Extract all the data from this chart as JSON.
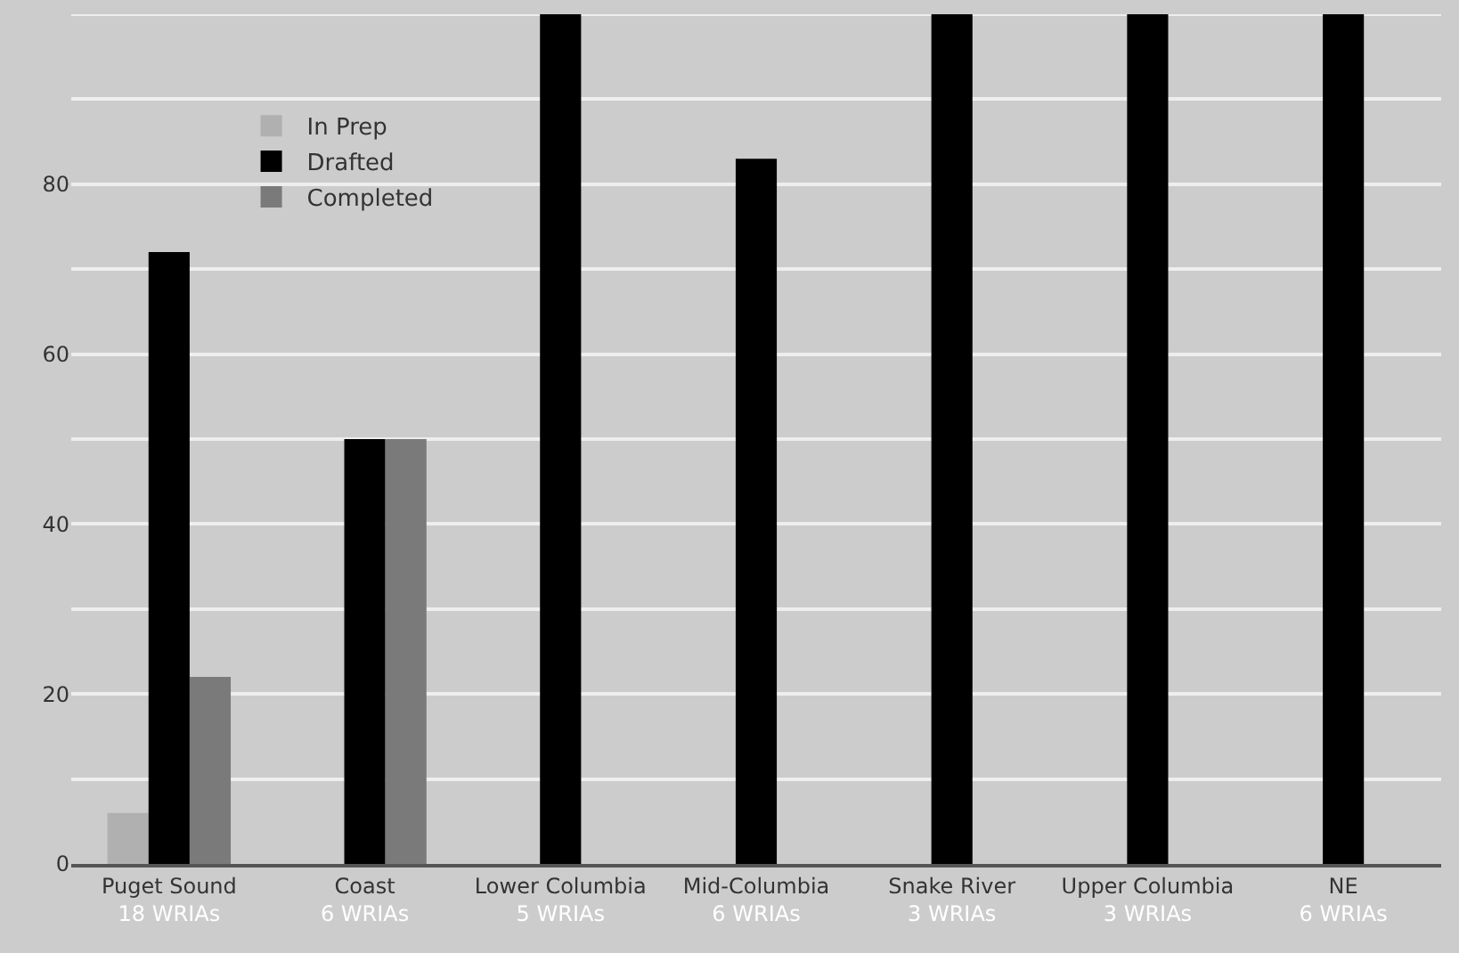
{
  "chart_data": {
    "type": "bar",
    "categories": [
      "Puget Sound\n18 WRIAs",
      "Coast\n6 WRIAs",
      "Lower Columbia\n5 WRIAs",
      "Mid-Columbia\n6 WRIAs",
      "Snake River\n3 WRIAs",
      "Upper Columbia\n3 WRIAs",
      "NE\n6 WRIAs"
    ],
    "series": [
      {
        "name": "In Prep",
        "color": "#b0b0b0",
        "values": [
          6,
          null,
          null,
          null,
          null,
          null,
          null
        ]
      },
      {
        "name": "Drafted",
        "color": "#000000",
        "values": [
          72,
          50,
          100,
          83,
          100,
          100,
          100
        ]
      },
      {
        "name": "Completed",
        "color": "#7a7a7a",
        "values": [
          22,
          50,
          null,
          null,
          null,
          null,
          null
        ]
      }
    ],
    "ylim": [
      0,
      100
    ],
    "yticks": [
      0,
      20,
      40,
      60,
      80,
      {
        "value": 100,
        "label": null
      }
    ],
    "grid": "y",
    "legend": "top left"
  }
}
